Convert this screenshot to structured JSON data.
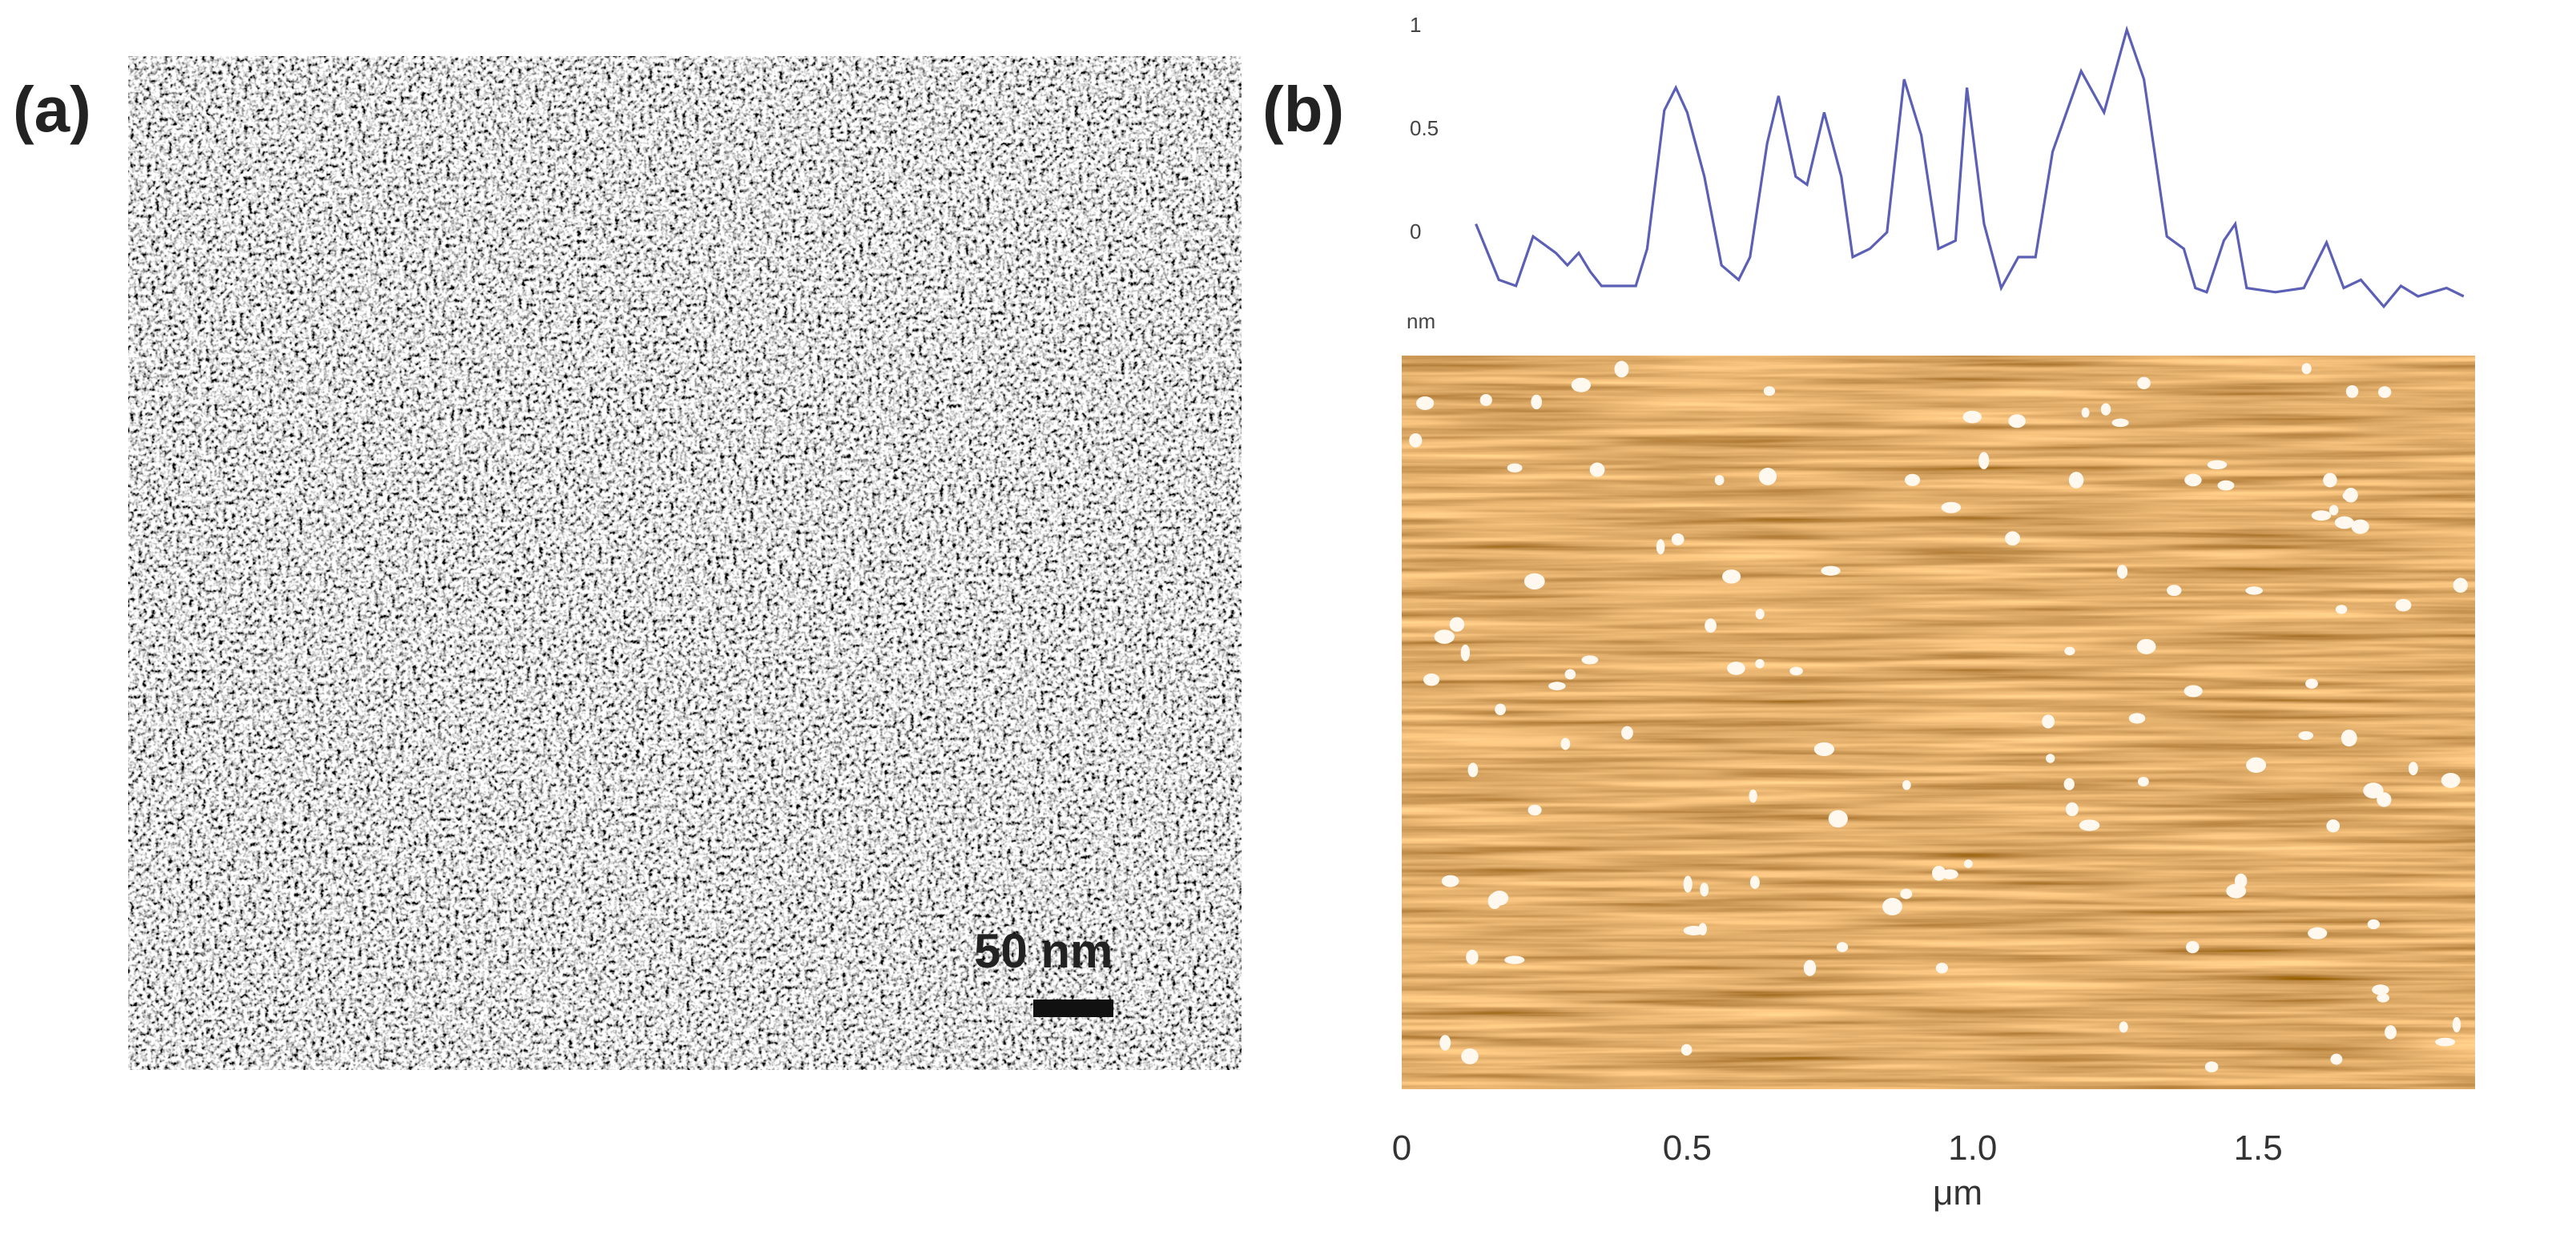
{
  "panels": [
    {
      "label": "(a)",
      "scale_bar": "50 nm"
    },
    {
      "label": "(b)"
    }
  ],
  "chart_data": {
    "type": "line",
    "y_label": "nm",
    "x_label": "μm",
    "xlim": [
      0,
      1.88
    ],
    "xticks": [
      0,
      0.5,
      {
        "value": 1,
        "label": "1.0"
      },
      1.5
    ],
    "ylim": [
      -0.4,
      1.05
    ],
    "yticks": [
      0,
      0.5,
      1
    ],
    "x": [
      0.13,
      0.17,
      0.2,
      0.23,
      0.27,
      0.29,
      0.31,
      0.33,
      0.35,
      0.41,
      0.43,
      0.46,
      0.48,
      0.5,
      0.53,
      0.56,
      0.59,
      0.61,
      0.64,
      0.66,
      0.69,
      0.71,
      0.74,
      0.77,
      0.79,
      0.82,
      0.85,
      0.88,
      0.91,
      0.94,
      0.97,
      0.99,
      1.02,
      1.05,
      1.08,
      1.11,
      1.14,
      1.19,
      1.23,
      1.27,
      1.3,
      1.34,
      1.37,
      1.39,
      1.41,
      1.44,
      1.46,
      1.48,
      1.53,
      1.58,
      1.62,
      1.65,
      1.68,
      1.72,
      1.75,
      1.78,
      1.83,
      1.86
    ],
    "series": [
      {
        "color": "#5b5fb5",
        "values": [
          0.04,
          -0.23,
          -0.26,
          -0.02,
          -0.1,
          -0.16,
          -0.1,
          -0.19,
          -0.26,
          -0.26,
          -0.08,
          0.59,
          0.7,
          0.58,
          0.27,
          -0.16,
          -0.23,
          -0.12,
          0.43,
          0.66,
          0.27,
          0.23,
          0.58,
          0.27,
          -0.12,
          -0.08,
          0.0,
          0.74,
          0.47,
          -0.08,
          -0.04,
          0.7,
          0.04,
          -0.27,
          -0.12,
          -0.12,
          0.39,
          0.78,
          0.58,
          0.98,
          0.74,
          -0.02,
          -0.08,
          -0.27,
          -0.29,
          -0.04,
          0.04,
          -0.27,
          -0.29,
          -0.27,
          -0.05,
          -0.27,
          -0.23,
          -0.36,
          -0.26,
          -0.31,
          -0.27,
          -0.31
        ]
      }
    ]
  }
}
